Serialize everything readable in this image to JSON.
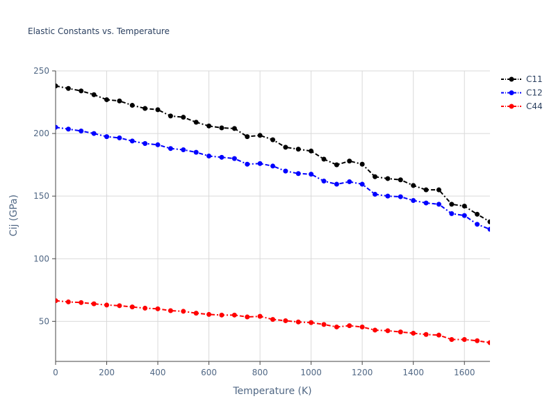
{
  "chart_data": {
    "type": "line",
    "title": "Elastic Constants vs. Temperature",
    "xlabel": "Temperature (K)",
    "ylabel": "Cij (GPa)",
    "xlim": [
      0,
      1700
    ],
    "ylim": [
      18,
      250
    ],
    "xticks": [
      0,
      200,
      400,
      600,
      800,
      1000,
      1200,
      1400,
      1600
    ],
    "yticks": [
      50,
      100,
      150,
      200,
      250
    ],
    "grid": true,
    "legend_position": "top-right",
    "x": [
      0,
      50,
      100,
      150,
      200,
      250,
      300,
      350,
      400,
      450,
      500,
      550,
      600,
      650,
      700,
      750,
      800,
      850,
      900,
      950,
      1000,
      1050,
      1100,
      1150,
      1200,
      1250,
      1300,
      1350,
      1400,
      1450,
      1500,
      1550,
      1600,
      1650,
      1700
    ],
    "series": [
      {
        "name": "C11",
        "color": "#000000",
        "values": [
          238,
          236,
          234,
          231,
          227,
          226,
          222.5,
          220,
          219,
          214,
          213,
          209,
          206,
          204.5,
          204,
          197.5,
          198.5,
          195,
          189,
          187.5,
          186,
          179.5,
          175,
          178,
          175.5,
          165.5,
          164,
          163,
          158.5,
          155,
          155,
          143.5,
          142,
          135.5,
          129.5
        ]
      },
      {
        "name": "C12",
        "color": "#0000ff",
        "values": [
          205,
          203.5,
          202,
          200,
          197.5,
          196.5,
          194,
          192,
          191,
          188,
          187,
          185,
          182,
          181,
          180,
          175.5,
          176,
          174,
          170,
          168,
          167.5,
          162,
          159.5,
          161.5,
          159.5,
          151.5,
          150,
          149.5,
          146.5,
          144.5,
          143.5,
          136,
          134.5,
          127.5,
          123.5
        ]
      },
      {
        "name": "C44",
        "color": "#ff0000",
        "values": [
          66.5,
          65.5,
          65,
          64,
          63,
          62.5,
          61.5,
          60.5,
          60,
          58.5,
          58,
          56.5,
          55.5,
          55,
          55,
          53.5,
          54,
          51.5,
          50.5,
          49.5,
          49,
          47.5,
          45.5,
          46.5,
          45.5,
          43,
          42.5,
          41.5,
          40.5,
          39.5,
          39,
          35.5,
          35.5,
          34.5,
          33
        ]
      }
    ]
  }
}
